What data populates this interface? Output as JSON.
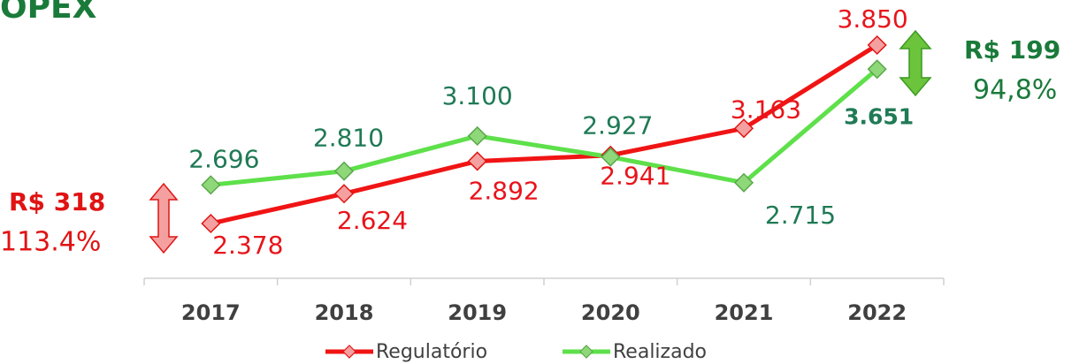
{
  "chart_data": {
    "type": "line",
    "title": "OPEX",
    "categories": [
      "2017",
      "2018",
      "2019",
      "2020",
      "2021",
      "2022"
    ],
    "series": [
      {
        "name": "Regulatório",
        "color": "#f01414",
        "values": [
          2378,
          2624,
          2892,
          2941,
          3163,
          3850
        ],
        "value_labels": [
          "2.378",
          "2.624",
          "2.892",
          "2.941",
          "3.163",
          "3.850"
        ]
      },
      {
        "name": "Realizado",
        "color": "#5ee04a",
        "values": [
          2696,
          2810,
          3100,
          2927,
          2715,
          3651
        ],
        "value_labels": [
          "2.696",
          "2.810",
          "3.100",
          "2.927",
          "2.715",
          "3.651"
        ]
      }
    ],
    "annotations": [
      "R$ 318",
      "113.4%",
      "R$ 199",
      "94,8%"
    ],
    "legend": "bottom"
  }
}
